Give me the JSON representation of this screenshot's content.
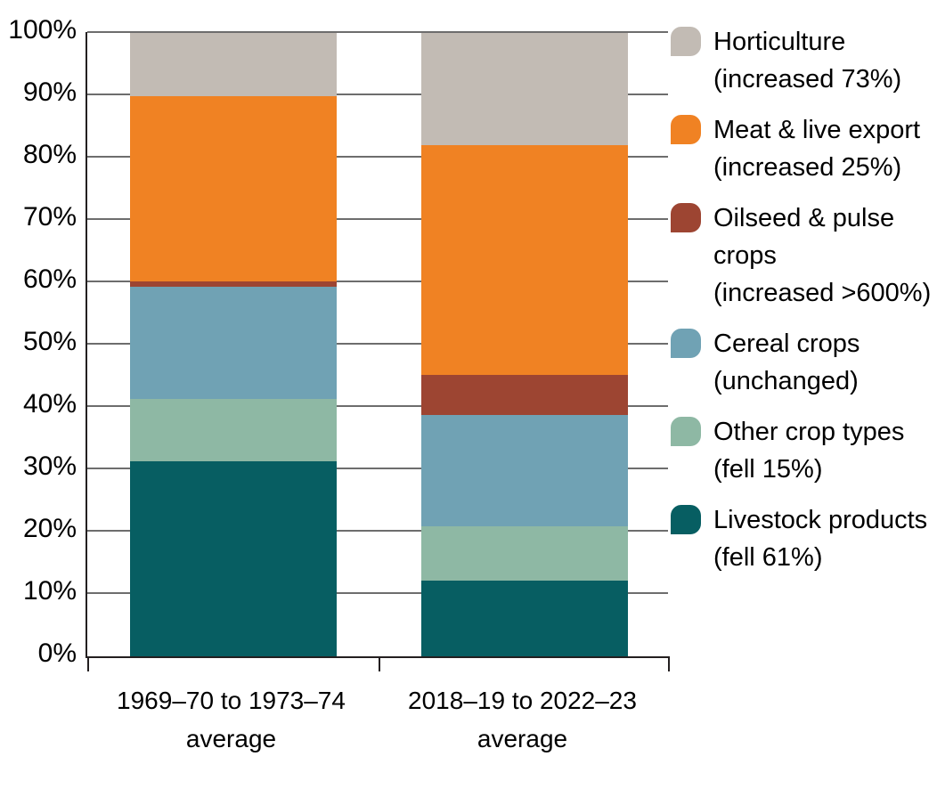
{
  "chart_data": {
    "type": "bar",
    "stacked": true,
    "percent_stacked": true,
    "grid": true,
    "title": "",
    "xlabel": "",
    "ylabel": "",
    "y_axis": {
      "min": 0,
      "max": 100,
      "step": 10,
      "tick_suffix": "%"
    },
    "categories": [
      [
        "1969–70 to 1973–74",
        "average"
      ],
      [
        "2018–19 to 2022–23",
        "average"
      ]
    ],
    "series": [
      {
        "name": "Livestock products",
        "note": "(fell 61%)",
        "color": "#075e62",
        "values": [
          31.3,
          12.2
        ]
      },
      {
        "name": "Other crop types",
        "note": "(fell 15%)",
        "color": "#8eb8a4",
        "values": [
          10.0,
          8.6
        ]
      },
      {
        "name": "Cereal crops",
        "note": "(unchanged)",
        "color": "#70a2b4",
        "values": [
          18.0,
          17.9
        ]
      },
      {
        "name": "Oilseed & pulse crops",
        "note": "(increased >600%)",
        "color": "#9d4532",
        "values": [
          0.8,
          6.4
        ]
      },
      {
        "name": "Meat & live export",
        "note": "(increased 25%)",
        "color": "#f08223",
        "values": [
          29.7,
          36.9
        ]
      },
      {
        "name": "Horticulture",
        "note": "(increased 73%)",
        "color": "#c2bbb4",
        "values": [
          10.2,
          18.0
        ]
      }
    ],
    "legend": {
      "position": "right",
      "items": [
        {
          "label": "Horticulture",
          "note": "(increased 73%)",
          "color": "#c2bbb4"
        },
        {
          "label": "Meat & live export",
          "note": "(increased 25%)",
          "color": "#f08223"
        },
        {
          "label": "Oilseed & pulse crops",
          "note": "(increased >600%)",
          "color": "#9d4532"
        },
        {
          "label": "Cereal crops",
          "note": "(unchanged)",
          "color": "#70a2b4"
        },
        {
          "label": "Other crop types",
          "note": "(fell 15%)",
          "color": "#8eb8a4"
        },
        {
          "label": "Livestock products",
          "note": "(fell 61%)",
          "color": "#075e62"
        }
      ]
    },
    "colors": {
      "axis": "#231f20",
      "gridline": "#6d6d6d",
      "text": "#000000"
    }
  }
}
